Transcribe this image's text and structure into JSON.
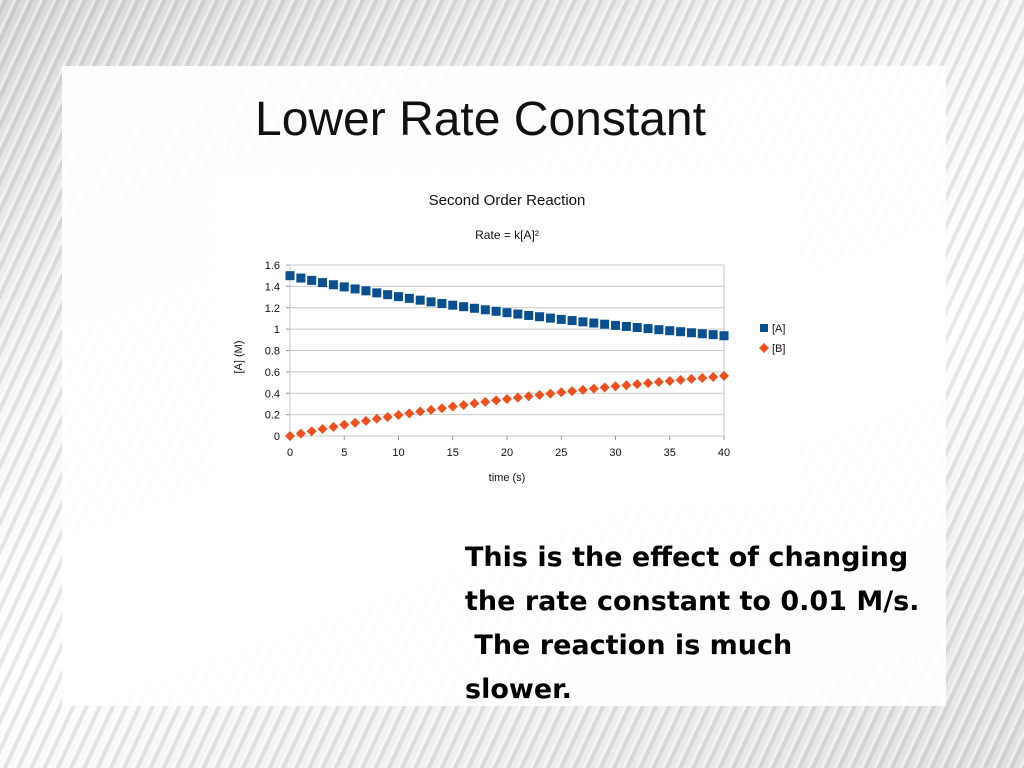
{
  "slide": {
    "title": "Lower Rate Constant",
    "body_lines": [
      "This is the effect of changing",
      "the rate constant to 0.01 M/s.",
      " The reaction is much",
      "slower."
    ]
  },
  "colors": {
    "series_A": "#0a4f8f",
    "series_B": "#f0501e",
    "grid": "#c8c8c8"
  },
  "chart_data": {
    "type": "scatter",
    "title": "Second Order Reaction",
    "subtitle": "Rate = k[A]²",
    "xlabel": "time (s)",
    "ylabel": "[A] (M)",
    "xlim": [
      0,
      40
    ],
    "ylim": [
      0,
      1.6
    ],
    "x_ticks": [
      "0",
      "5",
      "10",
      "15",
      "20",
      "25",
      "30",
      "35",
      "40"
    ],
    "y_ticks": [
      "0",
      "0.2",
      "0.4",
      "0.6",
      "0.8",
      "1",
      "1.2",
      "1.4",
      "1.6"
    ],
    "grid": true,
    "legend_position": "right",
    "x": [
      0,
      1,
      2,
      3,
      4,
      5,
      6,
      7,
      8,
      9,
      10,
      11,
      12,
      13,
      14,
      15,
      16,
      17,
      18,
      19,
      20,
      21,
      22,
      23,
      24,
      25,
      26,
      27,
      28,
      29,
      30,
      31,
      32,
      33,
      34,
      35,
      36,
      37,
      38,
      39,
      40
    ],
    "series": [
      {
        "name": "[A]",
        "marker": "square",
        "values": [
          1.5,
          1.478,
          1.456,
          1.435,
          1.415,
          1.395,
          1.376,
          1.358,
          1.339,
          1.322,
          1.304,
          1.288,
          1.271,
          1.255,
          1.24,
          1.224,
          1.21,
          1.195,
          1.181,
          1.167,
          1.154,
          1.141,
          1.128,
          1.116,
          1.103,
          1.091,
          1.08,
          1.068,
          1.057,
          1.046,
          1.035,
          1.025,
          1.015,
          1.005,
          0.995,
          0.985,
          0.976,
          0.966,
          0.957,
          0.948,
          0.938
        ]
      },
      {
        "name": "[B]",
        "marker": "diamond",
        "values": [
          0.0,
          0.022,
          0.044,
          0.065,
          0.085,
          0.105,
          0.124,
          0.142,
          0.161,
          0.178,
          0.196,
          0.212,
          0.229,
          0.245,
          0.26,
          0.276,
          0.29,
          0.305,
          0.319,
          0.333,
          0.346,
          0.359,
          0.372,
          0.384,
          0.397,
          0.409,
          0.42,
          0.432,
          0.443,
          0.454,
          0.465,
          0.475,
          0.485,
          0.495,
          0.505,
          0.515,
          0.524,
          0.534,
          0.543,
          0.552,
          0.562
        ]
      }
    ]
  }
}
